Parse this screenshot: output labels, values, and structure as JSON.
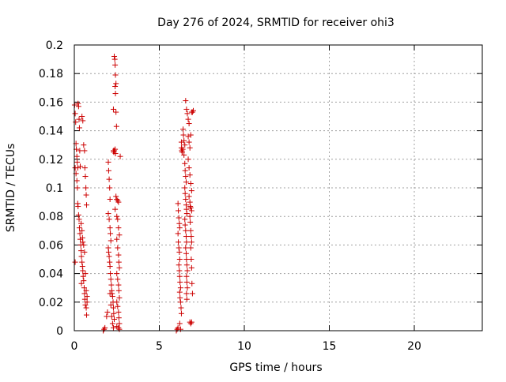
{
  "chart_data": {
    "type": "scatter",
    "title": "Day 276 of 2024, SRMTID for receiver ohi3",
    "xlabel": "GPS time / hours",
    "ylabel": "SRMTID / TECUs",
    "xlim": [
      0,
      24
    ],
    "ylim": [
      0,
      0.2
    ],
    "xticks": [
      0,
      5,
      10,
      15,
      20
    ],
    "xtick_labels": [
      "0",
      "5",
      "10",
      "15",
      "20"
    ],
    "yticks": [
      0,
      0.02,
      0.04,
      0.06,
      0.08,
      0.1,
      0.12,
      0.14,
      0.16,
      0.18,
      0.2
    ],
    "ytick_labels": [
      "0",
      "0.02",
      "0.04",
      "0.06",
      "0.08",
      "0.1",
      "0.12",
      "0.14",
      "0.16",
      "0.18",
      "0.2"
    ],
    "grid": true,
    "marker": "plus",
    "color": "#cc0000",
    "points": [
      [
        0.02,
        0.158
      ],
      [
        0.05,
        0.152
      ],
      [
        0.08,
        0.146
      ],
      [
        0.1,
        0.131
      ],
      [
        0.12,
        0.127
      ],
      [
        0.15,
        0.122
      ],
      [
        0.17,
        0.118
      ],
      [
        0.2,
        0.114
      ],
      [
        0.22,
        0.159
      ],
      [
        0.25,
        0.157
      ],
      [
        0.28,
        0.148
      ],
      [
        0.3,
        0.142
      ],
      [
        0.32,
        0.126
      ],
      [
        0.35,
        0.115
      ],
      [
        0.05,
        0.114
      ],
      [
        0.1,
        0.11
      ],
      [
        0.15,
        0.105
      ],
      [
        0.18,
        0.1
      ],
      [
        0.2,
        0.089
      ],
      [
        0.22,
        0.087
      ],
      [
        0.25,
        0.081
      ],
      [
        0.28,
        0.078
      ],
      [
        0.3,
        0.072
      ],
      [
        0.33,
        0.068
      ],
      [
        0.35,
        0.064
      ],
      [
        0.38,
        0.06
      ],
      [
        0.4,
        0.056
      ],
      [
        0.42,
        0.052
      ],
      [
        0.45,
        0.048
      ],
      [
        0.05,
        0.048
      ],
      [
        0.48,
        0.045
      ],
      [
        0.5,
        0.042
      ],
      [
        0.52,
        0.038
      ],
      [
        0.55,
        0.035
      ],
      [
        0.58,
        0.03
      ],
      [
        0.6,
        0.026
      ],
      [
        0.62,
        0.022
      ],
      [
        0.65,
        0.018
      ],
      [
        0.7,
        0.016
      ],
      [
        0.72,
        0.011
      ],
      [
        0.45,
        0.15
      ],
      [
        0.5,
        0.147
      ],
      [
        0.55,
        0.13
      ],
      [
        0.6,
        0.126
      ],
      [
        0.62,
        0.114
      ],
      [
        0.65,
        0.108
      ],
      [
        0.68,
        0.1
      ],
      [
        0.7,
        0.095
      ],
      [
        0.72,
        0.088
      ],
      [
        0.4,
        0.075
      ],
      [
        0.45,
        0.07
      ],
      [
        0.48,
        0.065
      ],
      [
        0.5,
        0.062
      ],
      [
        0.55,
        0.06
      ],
      [
        0.6,
        0.055
      ],
      [
        0.65,
        0.04
      ],
      [
        0.7,
        0.028
      ],
      [
        0.75,
        0.024
      ],
      [
        0.75,
        0.02
      ],
      [
        0.42,
        0.033
      ],
      [
        1.7,
        0.0
      ],
      [
        1.75,
        0.001
      ],
      [
        1.8,
        0.002
      ],
      [
        1.9,
        0.01
      ],
      [
        1.95,
        0.013
      ],
      [
        2.0,
        0.118
      ],
      [
        2.02,
        0.112
      ],
      [
        2.05,
        0.106
      ],
      [
        2.08,
        0.1
      ],
      [
        2.1,
        0.092
      ],
      [
        2.0,
        0.082
      ],
      [
        2.05,
        0.078
      ],
      [
        2.1,
        0.072
      ],
      [
        2.12,
        0.068
      ],
      [
        2.15,
        0.063
      ],
      [
        2.0,
        0.058
      ],
      [
        2.02,
        0.055
      ],
      [
        2.05,
        0.052
      ],
      [
        2.08,
        0.048
      ],
      [
        2.1,
        0.045
      ],
      [
        2.12,
        0.04
      ],
      [
        2.15,
        0.036
      ],
      [
        2.18,
        0.032
      ],
      [
        2.2,
        0.028
      ],
      [
        2.22,
        0.026
      ],
      [
        2.25,
        0.024
      ],
      [
        2.28,
        0.02
      ],
      [
        2.3,
        0.016
      ],
      [
        2.32,
        0.012
      ],
      [
        2.35,
        0.008
      ],
      [
        2.1,
        0.026
      ],
      [
        2.15,
        0.018
      ],
      [
        2.2,
        0.01
      ],
      [
        2.25,
        0.005
      ],
      [
        2.3,
        0.002
      ],
      [
        2.3,
        0.126
      ],
      [
        2.32,
        0.125
      ],
      [
        2.35,
        0.126
      ],
      [
        2.4,
        0.127
      ],
      [
        2.42,
        0.124
      ],
      [
        2.35,
        0.192
      ],
      [
        2.38,
        0.19
      ],
      [
        2.4,
        0.186
      ],
      [
        2.42,
        0.179
      ],
      [
        2.45,
        0.173
      ],
      [
        2.4,
        0.171
      ],
      [
        2.42,
        0.166
      ],
      [
        2.45,
        0.153
      ],
      [
        2.48,
        0.143
      ],
      [
        2.3,
        0.155
      ],
      [
        2.45,
        0.094
      ],
      [
        2.5,
        0.092
      ],
      [
        2.55,
        0.091
      ],
      [
        2.6,
        0.09
      ],
      [
        2.4,
        0.085
      ],
      [
        2.5,
        0.08
      ],
      [
        2.55,
        0.078
      ],
      [
        2.6,
        0.072
      ],
      [
        2.65,
        0.067
      ],
      [
        2.5,
        0.064
      ],
      [
        2.55,
        0.058
      ],
      [
        2.6,
        0.053
      ],
      [
        2.62,
        0.048
      ],
      [
        2.65,
        0.044
      ],
      [
        2.5,
        0.04
      ],
      [
        2.55,
        0.036
      ],
      [
        2.6,
        0.032
      ],
      [
        2.62,
        0.028
      ],
      [
        2.65,
        0.023
      ],
      [
        2.5,
        0.02
      ],
      [
        2.55,
        0.017
      ],
      [
        2.6,
        0.013
      ],
      [
        2.62,
        0.009
      ],
      [
        2.65,
        0.005
      ],
      [
        2.6,
        0.002
      ],
      [
        2.7,
        0.122
      ],
      [
        2.65,
        0.001
      ],
      [
        2.5,
        0.003
      ],
      [
        6.0,
        0.0
      ],
      [
        6.05,
        0.001
      ],
      [
        6.1,
        0.002
      ],
      [
        6.2,
        0.005
      ],
      [
        6.25,
        0.001
      ],
      [
        6.1,
        0.089
      ],
      [
        6.12,
        0.084
      ],
      [
        6.15,
        0.079
      ],
      [
        6.18,
        0.075
      ],
      [
        6.2,
        0.072
      ],
      [
        6.1,
        0.068
      ],
      [
        6.12,
        0.062
      ],
      [
        6.15,
        0.058
      ],
      [
        6.18,
        0.055
      ],
      [
        6.2,
        0.05
      ],
      [
        6.15,
        0.046
      ],
      [
        6.18,
        0.042
      ],
      [
        6.2,
        0.038
      ],
      [
        6.22,
        0.034
      ],
      [
        6.25,
        0.03
      ],
      [
        6.2,
        0.027
      ],
      [
        6.22,
        0.023
      ],
      [
        6.25,
        0.02
      ],
      [
        6.28,
        0.016
      ],
      [
        6.3,
        0.012
      ],
      [
        6.3,
        0.128
      ],
      [
        6.32,
        0.126
      ],
      [
        6.35,
        0.125
      ],
      [
        6.38,
        0.127
      ],
      [
        6.3,
        0.132
      ],
      [
        6.4,
        0.141
      ],
      [
        6.42,
        0.137
      ],
      [
        6.45,
        0.133
      ],
      [
        6.5,
        0.13
      ],
      [
        6.45,
        0.123
      ],
      [
        6.5,
        0.117
      ],
      [
        6.52,
        0.112
      ],
      [
        6.55,
        0.108
      ],
      [
        6.58,
        0.104
      ],
      [
        6.5,
        0.1
      ],
      [
        6.52,
        0.096
      ],
      [
        6.55,
        0.092
      ],
      [
        6.58,
        0.088
      ],
      [
        6.6,
        0.085
      ],
      [
        6.62,
        0.082
      ],
      [
        6.5,
        0.078
      ],
      [
        6.52,
        0.074
      ],
      [
        6.55,
        0.07
      ],
      [
        6.58,
        0.066
      ],
      [
        6.6,
        0.062
      ],
      [
        6.55,
        0.058
      ],
      [
        6.58,
        0.054
      ],
      [
        6.6,
        0.05
      ],
      [
        6.62,
        0.046
      ],
      [
        6.65,
        0.042
      ],
      [
        6.6,
        0.038
      ],
      [
        6.62,
        0.034
      ],
      [
        6.65,
        0.03
      ],
      [
        6.6,
        0.026
      ],
      [
        6.62,
        0.022
      ],
      [
        6.55,
        0.161
      ],
      [
        6.6,
        0.155
      ],
      [
        6.65,
        0.152
      ],
      [
        6.7,
        0.148
      ],
      [
        6.75,
        0.145
      ],
      [
        6.7,
        0.136
      ],
      [
        6.75,
        0.132
      ],
      [
        6.8,
        0.128
      ],
      [
        6.85,
        0.137
      ],
      [
        6.9,
        0.153
      ],
      [
        6.7,
        0.12
      ],
      [
        6.75,
        0.114
      ],
      [
        6.8,
        0.109
      ],
      [
        6.85,
        0.103
      ],
      [
        6.9,
        0.098
      ],
      [
        6.75,
        0.094
      ],
      [
        6.8,
        0.09
      ],
      [
        6.82,
        0.087
      ],
      [
        6.85,
        0.086
      ],
      [
        6.9,
        0.084
      ],
      [
        6.8,
        0.08
      ],
      [
        6.82,
        0.076
      ],
      [
        6.85,
        0.07
      ],
      [
        6.88,
        0.066
      ],
      [
        6.9,
        0.062
      ],
      [
        6.85,
        0.058
      ],
      [
        6.88,
        0.05
      ],
      [
        6.9,
        0.044
      ],
      [
        6.92,
        0.033
      ],
      [
        6.95,
        0.026
      ],
      [
        6.8,
        0.006
      ],
      [
        6.85,
        0.005
      ],
      [
        6.9,
        0.006
      ],
      [
        6.95,
        0.153
      ],
      [
        7.0,
        0.154
      ]
    ]
  }
}
